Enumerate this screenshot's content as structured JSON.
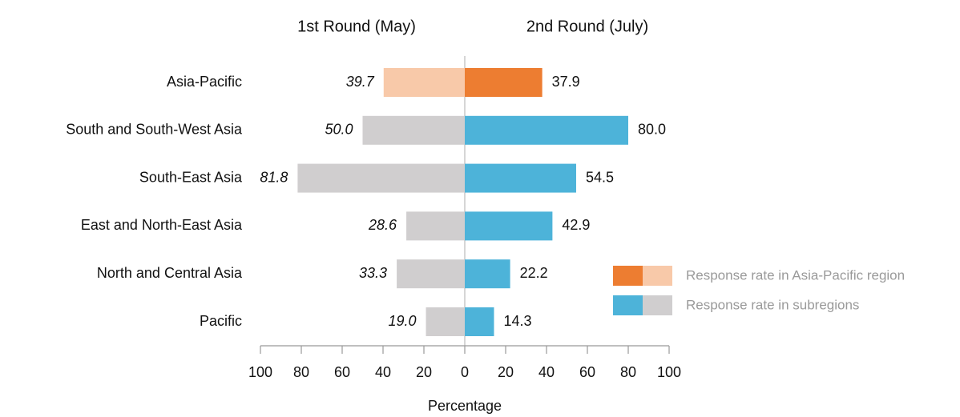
{
  "chart_data": {
    "type": "butterfly",
    "categories": [
      "Asia-Pacific",
      "South and South-West Asia",
      "South-East Asia",
      "East and North-East Asia",
      "North and Central Asia",
      "Pacific"
    ],
    "series": [
      {
        "name": "1st Round (May)",
        "side": "left",
        "values": [
          39.7,
          50.0,
          81.8,
          28.6,
          33.3,
          19.0
        ],
        "value_labels": [
          "39.7",
          "50.0",
          "81.8",
          "28.6",
          "33.3",
          "19.0"
        ],
        "colors": [
          "#f8c9a9",
          "#d0cecf",
          "#d0cecf",
          "#d0cecf",
          "#d0cecf",
          "#d0cecf"
        ]
      },
      {
        "name": "2nd Round (July)",
        "side": "right",
        "values": [
          37.9,
          80.0,
          54.5,
          42.9,
          22.2,
          14.3
        ],
        "value_labels": [
          "37.9",
          "80.0",
          "54.5",
          "42.9",
          "22.2",
          "14.3"
        ],
        "colors": [
          "#ed7d31",
          "#4db3d9",
          "#4db3d9",
          "#4db3d9",
          "#4db3d9",
          "#4db3d9"
        ]
      }
    ],
    "xlabel": "Percentage",
    "xlim": [
      -100,
      100
    ],
    "xticks": [
      {
        "value": -100,
        "label": "100"
      },
      {
        "value": -80,
        "label": "80"
      },
      {
        "value": -60,
        "label": "60"
      },
      {
        "value": -40,
        "label": "40"
      },
      {
        "value": -20,
        "label": "20"
      },
      0,
      20,
      40,
      60,
      80,
      100
    ],
    "legend": [
      {
        "label": "Response rate in Asia-Pacific region",
        "colors": [
          "#ed7d31",
          "#f8c9a9"
        ]
      },
      {
        "label": "Response rate in subregions",
        "colors": [
          "#4db3d9",
          "#d0cecf"
        ]
      }
    ]
  }
}
